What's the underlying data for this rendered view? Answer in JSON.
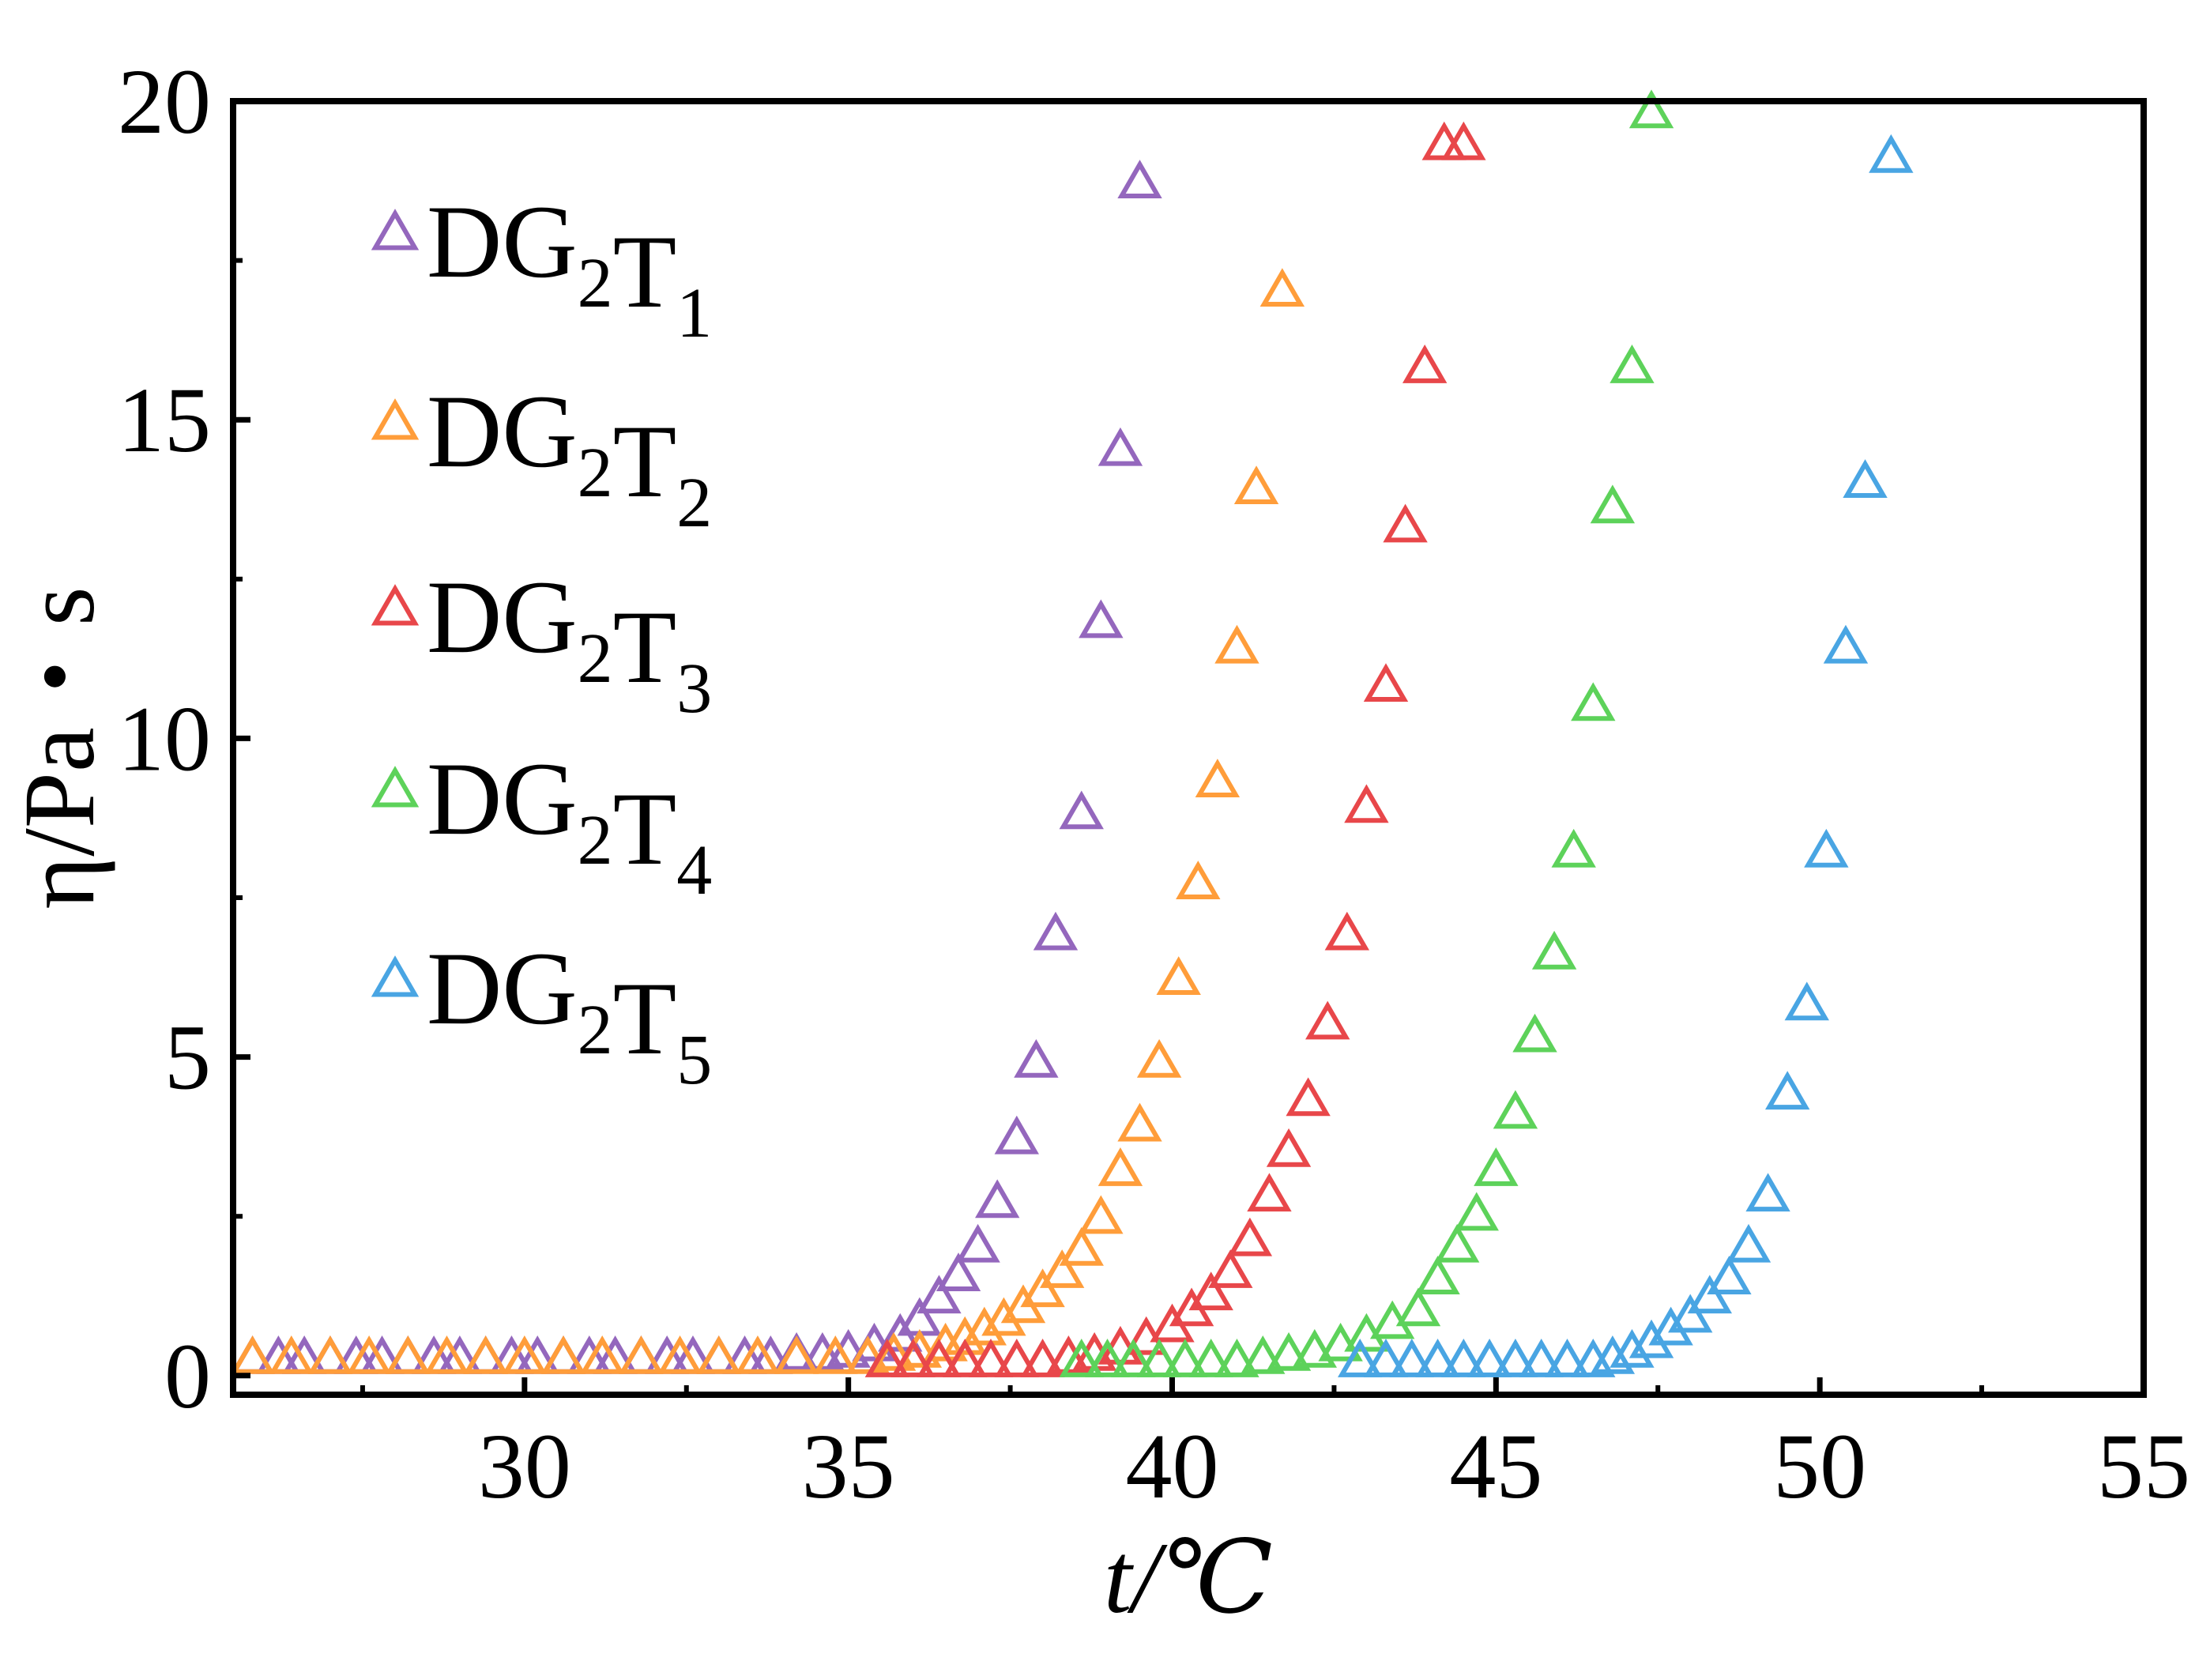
{
  "chart_data": {
    "type": "scatter",
    "xlabel": "t/℃",
    "ylabel": "η/Pa・s",
    "xlim": [
      25.5,
      55
    ],
    "ylim": [
      -0.3,
      20
    ],
    "x_ticks": [
      "30",
      "35",
      "40",
      "45",
      "50",
      "55"
    ],
    "y_ticks": [
      "0",
      "5",
      "10",
      "15",
      "20"
    ],
    "marker": "open-triangle",
    "legend": "top-left",
    "series": [
      {
        "name": "DG2T1",
        "color": "#9467bd",
        "x": [
          25.8,
          26.2,
          26.6,
          27.0,
          27.4,
          27.8,
          28.2,
          28.6,
          29.0,
          29.4,
          29.8,
          30.2,
          30.6,
          31.0,
          31.4,
          31.8,
          32.2,
          32.6,
          33.0,
          33.4,
          33.8,
          34.2,
          34.6,
          35.0,
          35.4,
          35.8,
          36.1,
          36.4,
          36.7,
          37.0,
          37.3,
          37.6,
          37.9,
          38.2,
          38.6,
          38.9,
          39.2,
          39.5
        ],
        "y": [
          0.25,
          0.25,
          0.25,
          0.25,
          0.25,
          0.25,
          0.25,
          0.25,
          0.25,
          0.25,
          0.25,
          0.25,
          0.25,
          0.25,
          0.25,
          0.25,
          0.25,
          0.25,
          0.25,
          0.25,
          0.25,
          0.3,
          0.3,
          0.35,
          0.45,
          0.6,
          0.85,
          1.2,
          1.55,
          2.0,
          2.7,
          3.7,
          4.9,
          6.9,
          8.8,
          11.8,
          14.5,
          18.7
        ]
      },
      {
        "name": "DG2T2",
        "color": "#ff9d3a",
        "x": [
          25.8,
          26.4,
          27.0,
          27.6,
          28.2,
          28.8,
          29.4,
          30.0,
          30.6,
          31.2,
          31.8,
          32.4,
          33.0,
          33.6,
          34.2,
          34.8,
          35.3,
          35.7,
          36.1,
          36.5,
          36.8,
          37.1,
          37.4,
          37.7,
          38.0,
          38.3,
          38.6,
          38.9,
          39.2,
          39.5,
          39.8,
          40.1,
          40.4,
          40.7,
          41.0,
          41.3,
          41.7
        ],
        "y": [
          0.25,
          0.25,
          0.25,
          0.25,
          0.25,
          0.25,
          0.25,
          0.25,
          0.25,
          0.25,
          0.25,
          0.25,
          0.25,
          0.25,
          0.25,
          0.25,
          0.25,
          0.3,
          0.35,
          0.45,
          0.55,
          0.7,
          0.85,
          1.05,
          1.3,
          1.6,
          1.95,
          2.45,
          3.2,
          3.9,
          4.9,
          6.2,
          7.7,
          9.3,
          11.4,
          13.9,
          17.0
        ]
      },
      {
        "name": "DG2T3",
        "color": "#e8474a",
        "x": [
          35.6,
          36.0,
          36.4,
          36.8,
          37.2,
          37.6,
          38.0,
          38.4,
          38.8,
          39.2,
          39.6,
          40.0,
          40.3,
          40.6,
          40.9,
          41.2,
          41.5,
          41.8,
          42.1,
          42.4,
          42.7,
          43.0,
          43.3,
          43.6,
          43.9,
          44.2,
          44.5
        ],
        "y": [
          0.2,
          0.2,
          0.2,
          0.2,
          0.2,
          0.2,
          0.2,
          0.25,
          0.3,
          0.4,
          0.55,
          0.75,
          1.0,
          1.25,
          1.6,
          2.1,
          2.8,
          3.5,
          4.3,
          5.5,
          6.9,
          8.9,
          10.8,
          13.3,
          15.8,
          19.3,
          19.3
        ]
      },
      {
        "name": "DG2T4",
        "color": "#5dd25a",
        "x": [
          38.6,
          39.0,
          39.4,
          39.8,
          40.2,
          40.6,
          41.0,
          41.4,
          41.8,
          42.2,
          42.6,
          43.0,
          43.4,
          43.8,
          44.1,
          44.4,
          44.7,
          45.0,
          45.3,
          45.6,
          45.9,
          46.2,
          46.5,
          46.8,
          47.1,
          47.4
        ],
        "y": [
          0.2,
          0.2,
          0.2,
          0.2,
          0.2,
          0.2,
          0.2,
          0.25,
          0.3,
          0.35,
          0.45,
          0.6,
          0.8,
          1.0,
          1.5,
          2.0,
          2.5,
          3.2,
          4.1,
          5.3,
          6.6,
          8.2,
          10.5,
          13.6,
          15.8,
          19.8
        ]
      },
      {
        "name": "DG2T5",
        "color": "#49a5e3",
        "x": [
          42.9,
          43.3,
          43.7,
          44.1,
          44.5,
          44.9,
          45.3,
          45.7,
          46.1,
          46.5,
          46.8,
          47.1,
          47.4,
          47.7,
          48.0,
          48.3,
          48.6,
          48.9,
          49.2,
          49.5,
          49.8,
          50.1,
          50.4,
          50.7,
          51.1
        ],
        "y": [
          0.2,
          0.2,
          0.2,
          0.2,
          0.2,
          0.2,
          0.2,
          0.2,
          0.2,
          0.2,
          0.25,
          0.35,
          0.5,
          0.7,
          0.9,
          1.2,
          1.5,
          2.0,
          2.8,
          4.4,
          5.8,
          8.2,
          11.4,
          14.0,
          19.1
        ]
      }
    ]
  }
}
